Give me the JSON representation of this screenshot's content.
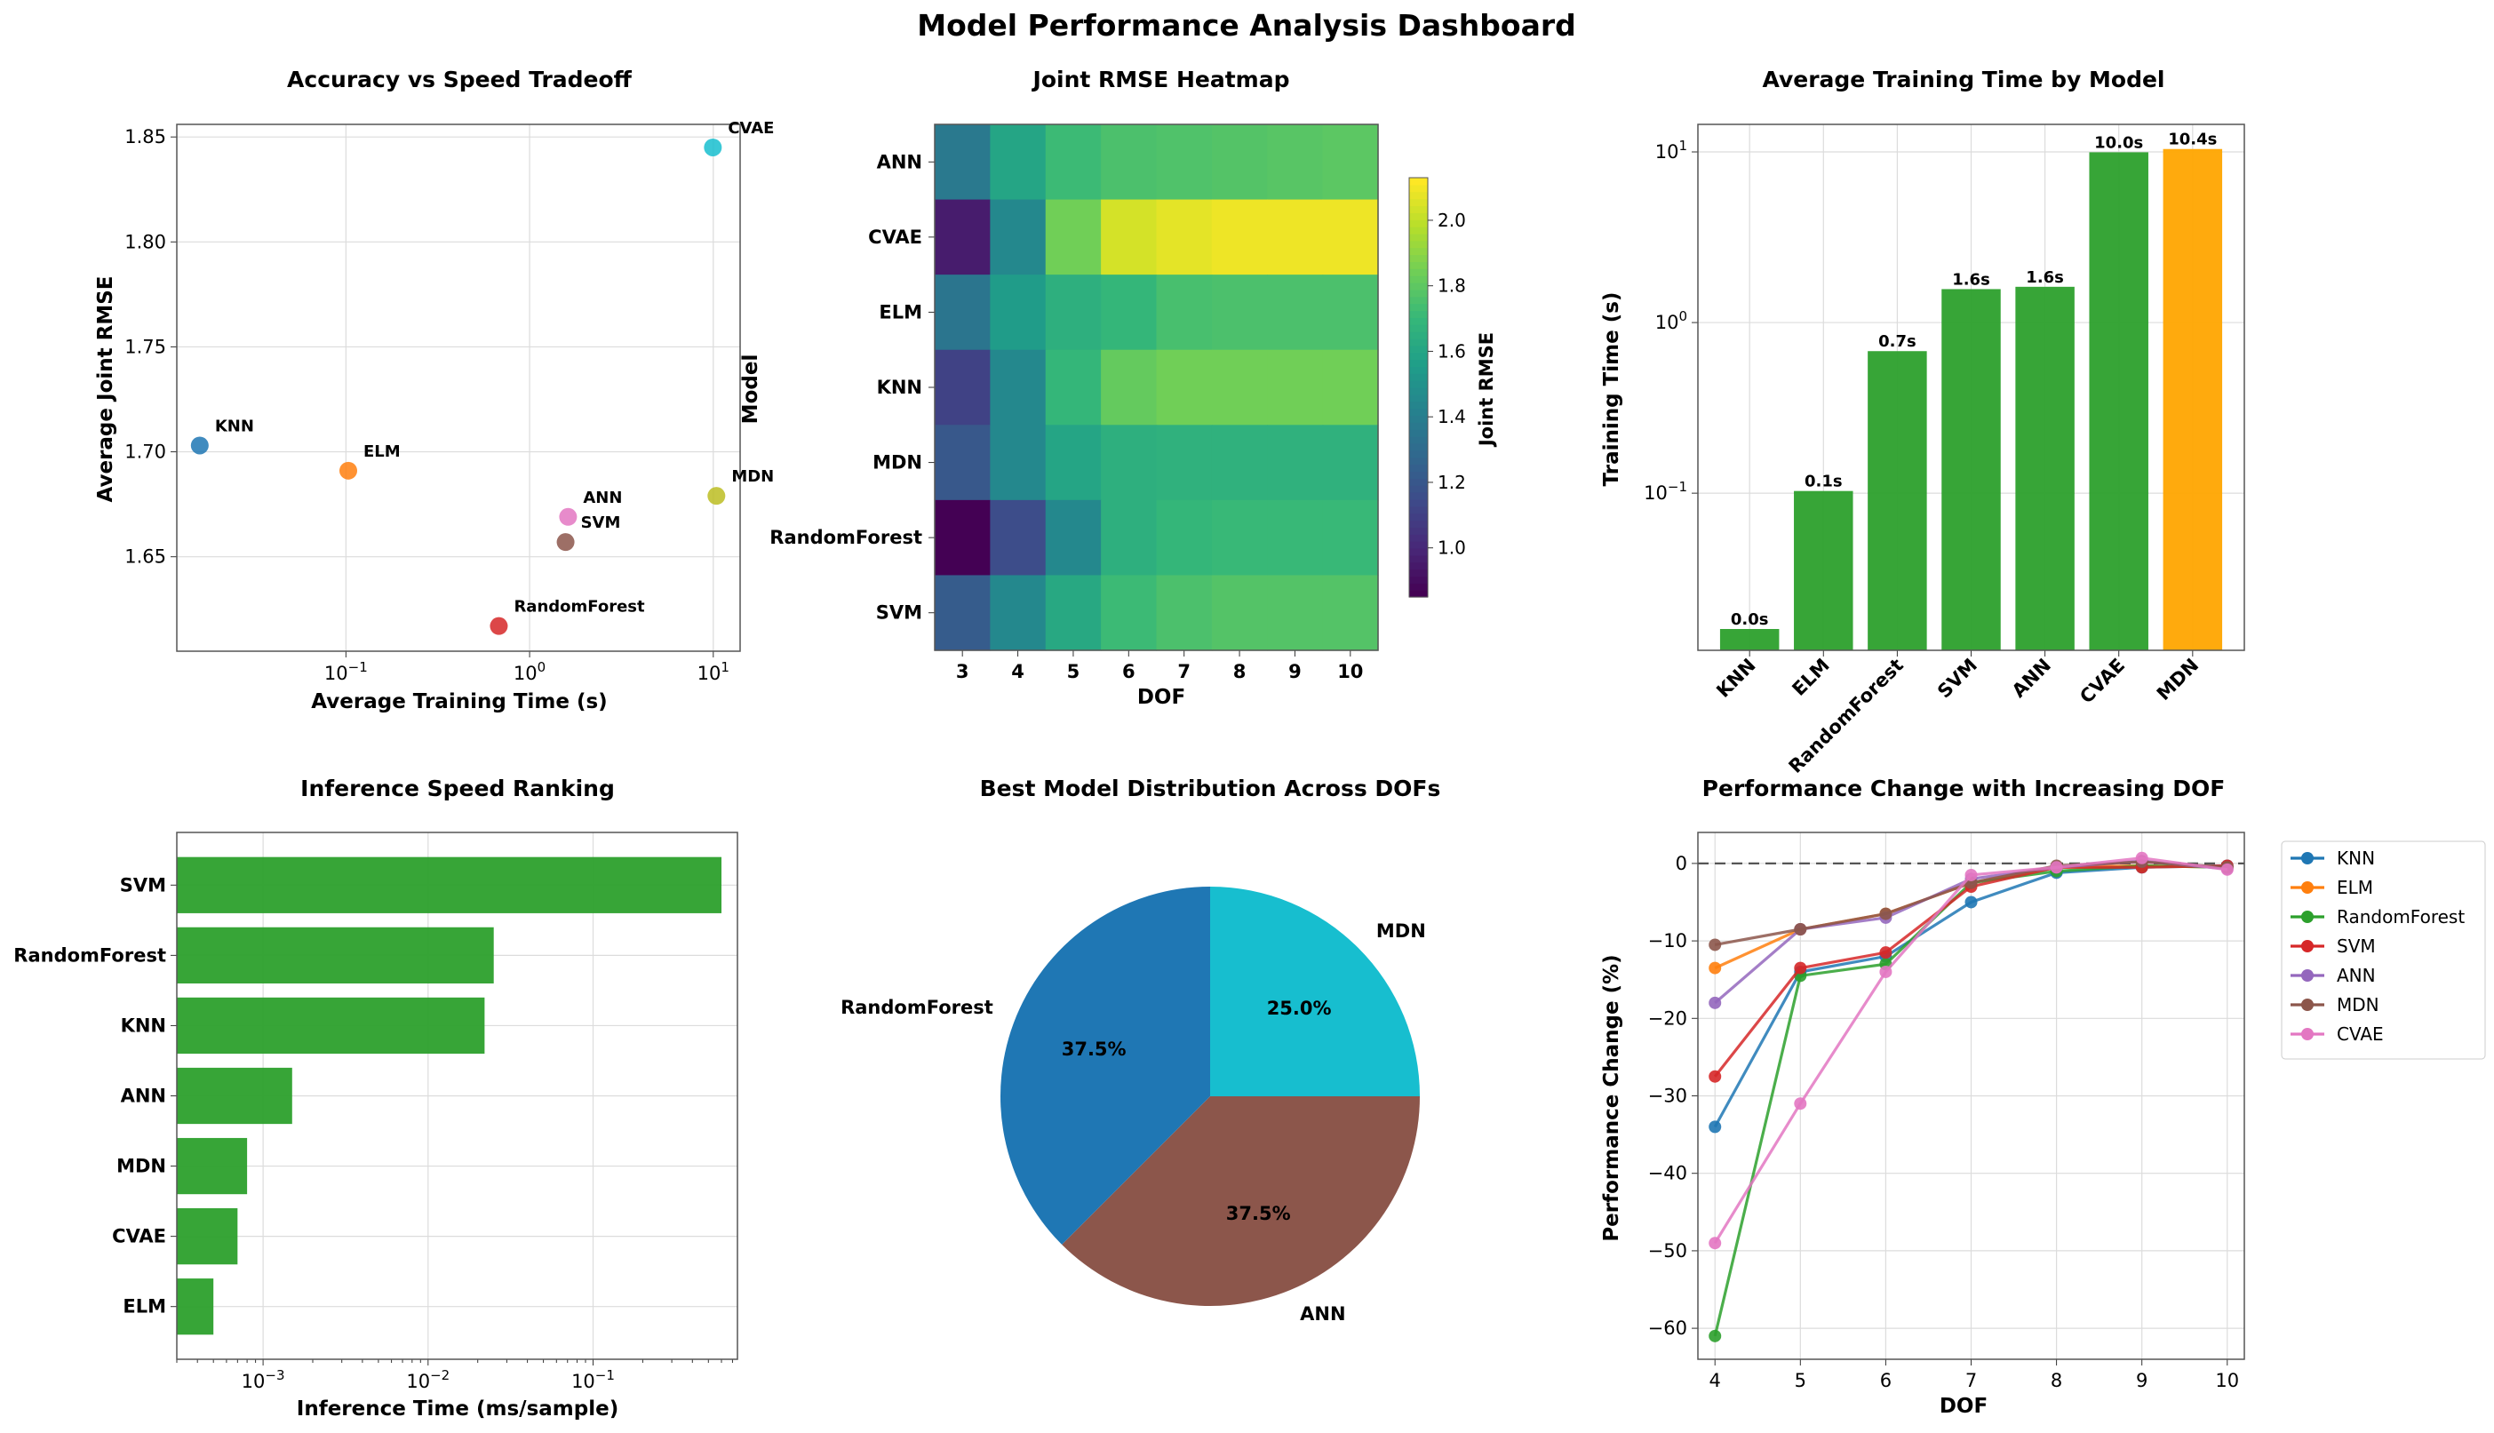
{
  "dashboard_title": "Model Performance Analysis Dashboard",
  "colors": {
    "KNN": "#1f77b4",
    "ELM": "#ff7f0e",
    "RandomForest": "#2ca02c",
    "SVM": "#d62728",
    "ANN": "#9467bd",
    "MDN": "#8c564b",
    "CVAE": "#e377c2",
    "bar_green": "#2ca02c",
    "bar_highlight": "#ffa500",
    "scatter_CVAE": "#17becf",
    "scatter_MDN": "#bcbd22",
    "scatter_ANN": "#e377c2",
    "scatter_SVM": "#8c564b",
    "pie_MDN": "#17becf",
    "pie_ANN": "#8c564b",
    "pie_RandomForest": "#1f77b4"
  },
  "chart_data": [
    {
      "type": "scatter",
      "title": "Accuracy vs Speed Tradeoff",
      "xlabel": "Average Training Time (s)",
      "ylabel": "Average Joint RMSE",
      "xscale": "log",
      "xlim": [
        0.012,
        14
      ],
      "ylim": [
        1.605,
        1.856
      ],
      "yticks": [
        1.65,
        1.7,
        1.75,
        1.8,
        1.85
      ],
      "xticks": [
        {
          "value": 0.1,
          "base": "10",
          "exp": "−1"
        },
        {
          "value": 1,
          "base": "10",
          "exp": "0"
        },
        {
          "value": 10,
          "base": "10",
          "exp": "1"
        }
      ],
      "grid": true,
      "points": [
        {
          "label": "KNN",
          "x": 0.016,
          "y": 1.703,
          "color": "#1f77b4"
        },
        {
          "label": "ELM",
          "x": 0.103,
          "y": 1.691,
          "color": "#ff7f0e"
        },
        {
          "label": "RandomForest",
          "x": 0.68,
          "y": 1.617,
          "color": "#d62728"
        },
        {
          "label": "SVM",
          "x": 1.57,
          "y": 1.657,
          "color": "#8c564b"
        },
        {
          "label": "ANN",
          "x": 1.62,
          "y": 1.669,
          "color": "#e377c2"
        },
        {
          "label": "CVAE",
          "x": 9.95,
          "y": 1.845,
          "color": "#17becf"
        },
        {
          "label": "MDN",
          "x": 10.4,
          "y": 1.679,
          "color": "#bcbd22"
        }
      ]
    },
    {
      "type": "heatmap",
      "title": "Joint RMSE Heatmap",
      "xlabel": "DOF",
      "ylabel": "Model",
      "colorbar_label": "Joint RMSE",
      "x": [
        3,
        4,
        5,
        6,
        7,
        8,
        9,
        10
      ],
      "y": [
        "ANN",
        "CVAE",
        "ELM",
        "KNN",
        "MDN",
        "RandomForest",
        "SVM"
      ],
      "values": [
        [
          1.37,
          1.6,
          1.72,
          1.76,
          1.77,
          1.78,
          1.79,
          1.8
        ],
        [
          0.95,
          1.45,
          1.85,
          2.05,
          2.08,
          2.1,
          2.1,
          2.1
        ],
        [
          1.35,
          1.55,
          1.66,
          1.7,
          1.75,
          1.76,
          1.76,
          1.76
        ],
        [
          1.1,
          1.45,
          1.7,
          1.82,
          1.85,
          1.85,
          1.85,
          1.85
        ],
        [
          1.2,
          1.45,
          1.6,
          1.66,
          1.67,
          1.67,
          1.67,
          1.67
        ],
        [
          0.85,
          1.15,
          1.45,
          1.66,
          1.7,
          1.71,
          1.71,
          1.71
        ],
        [
          1.22,
          1.45,
          1.62,
          1.72,
          1.76,
          1.78,
          1.78,
          1.78
        ]
      ],
      "vmin": 0.85,
      "vmax": 2.13,
      "colorbar_ticks": [
        1.0,
        1.2,
        1.4,
        1.6,
        1.8,
        2.0
      ]
    },
    {
      "type": "bar",
      "title": "Average Training Time by Model",
      "ylabel": "Training Time (s)",
      "yscale": "log",
      "ylim": [
        0.012,
        14.5
      ],
      "yticks": [
        {
          "value": 0.1,
          "base": "10",
          "exp": "−1"
        },
        {
          "value": 1,
          "base": "10",
          "exp": "0"
        },
        {
          "value": 10,
          "base": "10",
          "exp": "1"
        }
      ],
      "categories": [
        "KNN",
        "ELM",
        "RandomForest",
        "SVM",
        "ANN",
        "CVAE",
        "MDN"
      ],
      "values": [
        0.016,
        0.103,
        0.68,
        1.57,
        1.62,
        9.95,
        10.4
      ],
      "labels": [
        "0.0s",
        "0.1s",
        "0.7s",
        "1.6s",
        "1.6s",
        "10.0s",
        "10.4s"
      ],
      "colors": [
        "#2ca02c",
        "#2ca02c",
        "#2ca02c",
        "#2ca02c",
        "#2ca02c",
        "#2ca02c",
        "#ffa500"
      ]
    },
    {
      "type": "bar",
      "orientation": "horizontal",
      "title": "Inference Speed Ranking",
      "xlabel": "Inference Time (ms/sample)",
      "xscale": "log",
      "xlim": [
        0.0003,
        0.75
      ],
      "xticks": [
        {
          "value": 0.001,
          "base": "10",
          "exp": "−3"
        },
        {
          "value": 0.01,
          "base": "10",
          "exp": "−2"
        },
        {
          "value": 0.1,
          "base": "10",
          "exp": "−1"
        }
      ],
      "categories": [
        "SVM",
        "RandomForest",
        "KNN",
        "ANN",
        "MDN",
        "CVAE",
        "ELM"
      ],
      "values": [
        0.6,
        0.025,
        0.022,
        0.0015,
        0.0008,
        0.0007,
        0.0005
      ]
    },
    {
      "type": "pie",
      "title": "Best Model Distribution Across DOFs",
      "slices": [
        {
          "label": "MDN",
          "value": 25.0,
          "pct": "25.0%",
          "color": "#17becf"
        },
        {
          "label": "ANN",
          "value": 37.5,
          "pct": "37.5%",
          "color": "#8c564b"
        },
        {
          "label": "RandomForest",
          "value": 37.5,
          "pct": "37.5%",
          "color": "#1f77b4"
        }
      ]
    },
    {
      "type": "line",
      "title": "Performance Change with Increasing DOF",
      "xlabel": "DOF",
      "ylabel": "Performance Change (%)",
      "x": [
        4,
        5,
        6,
        7,
        8,
        9,
        10
      ],
      "xlim": [
        3.8,
        10.2
      ],
      "ylim": [
        -64,
        4
      ],
      "yticks": [
        0,
        -10,
        -20,
        -30,
        -40,
        -50,
        -60
      ],
      "reference_line": 0,
      "legend": "outside-right",
      "series": [
        {
          "name": "KNN",
          "color": "#1f77b4",
          "values": [
            -34,
            -14,
            -12,
            -5,
            -1.2,
            -0.5,
            -0.3
          ]
        },
        {
          "name": "ELM",
          "color": "#ff7f0e",
          "values": [
            -13.5,
            -8.5,
            -6.5,
            -2.5,
            -0.5,
            -0.3,
            -0.5
          ]
        },
        {
          "name": "RandomForest",
          "color": "#2ca02c",
          "values": [
            -61,
            -14.5,
            -13,
            -2.5,
            -1,
            -0.3,
            -0.5
          ]
        },
        {
          "name": "SVM",
          "color": "#d62728",
          "values": [
            -27.5,
            -13.5,
            -11.5,
            -3,
            -0.5,
            -0.5,
            -0.3
          ]
        },
        {
          "name": "ANN",
          "color": "#9467bd",
          "values": [
            -18,
            -8.5,
            -7,
            -2,
            -0.5,
            0.3,
            -0.7
          ]
        },
        {
          "name": "MDN",
          "color": "#8c564b",
          "values": [
            -10.5,
            -8.5,
            -6.5,
            -2.5,
            -0.3,
            0.2,
            -0.5
          ]
        },
        {
          "name": "CVAE",
          "color": "#e377c2",
          "values": [
            -49,
            -31,
            -14,
            -1.5,
            -0.5,
            0.7,
            -0.8
          ]
        }
      ]
    }
  ]
}
